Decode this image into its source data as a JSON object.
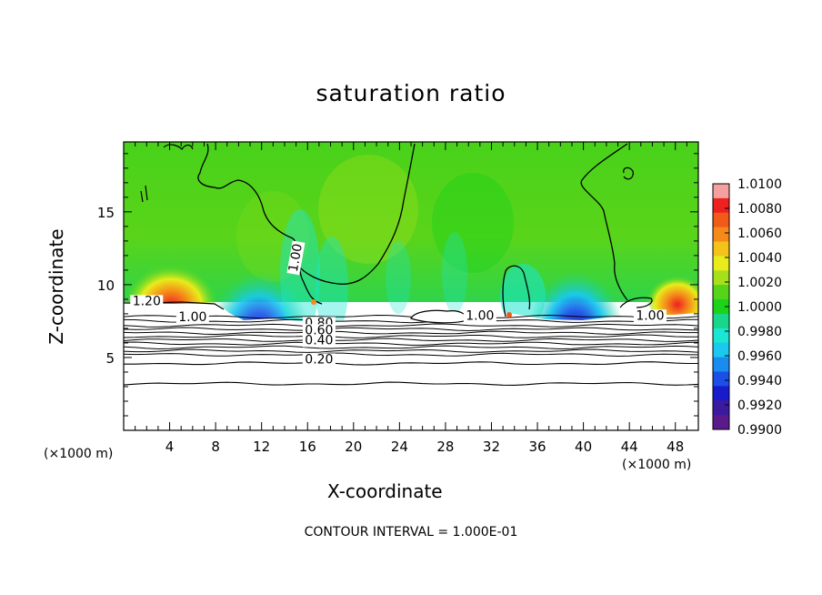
{
  "chart_data": {
    "type": "heatmap",
    "title": "saturation ratio",
    "xlabel": "X-coordinate",
    "ylabel": "Z-coordinate",
    "x_unit": "(×1000 m)",
    "z_unit": "(×1000 m)",
    "xlim": [
      0,
      50
    ],
    "ylim": [
      0,
      19.8
    ],
    "x_ticks": [
      4,
      8,
      12,
      16,
      20,
      24,
      28,
      32,
      36,
      40,
      44,
      48
    ],
    "y_ticks": [
      5,
      10,
      15
    ],
    "colorbar": {
      "ticks": [
        "1.0100",
        "1.0080",
        "1.0060",
        "1.0040",
        "1.0020",
        "1.0000",
        "0.9980",
        "0.9960",
        "0.9940",
        "0.9920",
        "0.9900"
      ],
      "colors": [
        "#f4a0a0",
        "#ee2020",
        "#f25a1a",
        "#f58a1a",
        "#f3c31a",
        "#e9ec1a",
        "#a6e01a",
        "#55d41a",
        "#1ad31a",
        "#1ad68a",
        "#1ae6d2",
        "#1ac8f0",
        "#1a8cf0",
        "#1a50e6",
        "#1a1acd",
        "#3c1aa0",
        "#5a1a8c"
      ]
    },
    "contour_labels": [
      {
        "text": "1.20",
        "x": 2.0,
        "z": 8.6
      },
      {
        "text": "1.00",
        "x": 6.0,
        "z": 7.5
      },
      {
        "text": "1.00",
        "x": 15.3,
        "z": 11.8
      },
      {
        "text": "0.80",
        "x": 17.0,
        "z": 7.1
      },
      {
        "text": "0.60",
        "x": 17.0,
        "z": 6.6
      },
      {
        "text": "0.40",
        "x": 17.0,
        "z": 5.9
      },
      {
        "text": "0.20",
        "x": 17.0,
        "z": 4.6
      },
      {
        "text": "1.00",
        "x": 31.0,
        "z": 7.6
      },
      {
        "text": "1.00",
        "x": 45.8,
        "z": 7.6
      }
    ],
    "contour_interval_label": "CONTOUR INTERVAL = 1.000E-01",
    "grid": false
  }
}
